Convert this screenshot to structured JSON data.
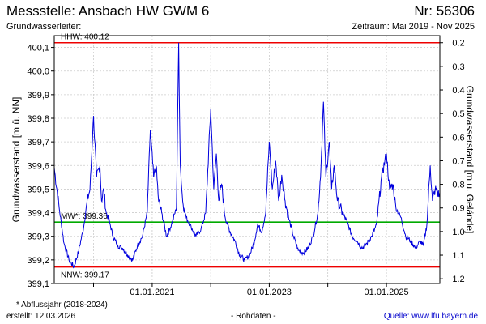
{
  "header": {
    "title": "Messstelle: Ansbach HW GWM 6",
    "number": "Nr: 56306",
    "aquifer_label": "Grundwasserleiter:",
    "period": "Zeitraum: Mai 2019 - Nov 2025"
  },
  "footer": {
    "footnote": "* Abflussjahr (2018-2024)",
    "created": "erstellt:  12.03.2026",
    "raw_data": "- Rohdaten -",
    "source": "Quelle: www.lfu.bayern.de"
  },
  "colors": {
    "series": "#0000dd",
    "hhw": "#ee0000",
    "nnw": "#ee0000",
    "mw": "#00aa00",
    "grid": "#cccccc"
  },
  "chart_data": {
    "type": "line",
    "title": "",
    "ylabel": "Grundwasserstand [m ü. NN]",
    "y2label": "Grundwasserstand [m u. Gelände]",
    "ylim": [
      399.1,
      400.15
    ],
    "yticks": [
      "400,1",
      "400,0",
      "399,9",
      "399,8",
      "399,7",
      "399,6",
      "399,5",
      "399,4",
      "399,3",
      "399,2",
      "399,1"
    ],
    "ytick_values": [
      400.1,
      400.0,
      399.9,
      399.8,
      399.7,
      399.6,
      399.5,
      399.4,
      399.3,
      399.2,
      399.1
    ],
    "y2ticks": [
      "0.2",
      "0.3",
      "0.4",
      "0.5",
      "0.6",
      "0.7",
      "0.8",
      "0.9",
      "1.0",
      "1.1",
      "1.2"
    ],
    "y2tick_values": [
      0.2,
      0.3,
      0.4,
      0.5,
      0.6,
      0.7,
      0.8,
      0.9,
      1.0,
      1.1,
      1.2
    ],
    "xlim": [
      "2019-05-01",
      "2025-11-30"
    ],
    "xticks": [
      "01.01.2021",
      "01.01.2023",
      "01.01.2025"
    ],
    "xtick_values": [
      "2021-01-01",
      "2023-01-01",
      "2025-01-01"
    ],
    "grid": true,
    "reference_lines": [
      {
        "name": "HHW",
        "label": "HHW: 400.12",
        "value": 400.12
      },
      {
        "name": "MW",
        "label": "MW*: 399.36",
        "value": 399.36
      },
      {
        "name": "NNW",
        "label": "NNW: 399.17",
        "value": 399.17
      }
    ],
    "series": [
      {
        "x": [
          "2019-05-01",
          "2019-06-01",
          "2019-07-01",
          "2019-08-01",
          "2019-09-01",
          "2019-10-01",
          "2019-11-01",
          "2019-11-20",
          "2019-12-10",
          "2020-01-01",
          "2020-01-20",
          "2020-02-10",
          "2020-02-20",
          "2020-03-05",
          "2020-03-20",
          "2020-04-10",
          "2020-05-01",
          "2020-06-01",
          "2020-07-01",
          "2020-08-01",
          "2020-09-01",
          "2020-10-01",
          "2020-11-01",
          "2020-12-01",
          "2020-12-20",
          "2021-01-10",
          "2021-01-25",
          "2021-02-10",
          "2021-03-01",
          "2021-04-01",
          "2021-05-01",
          "2021-06-01",
          "2021-06-15",
          "2021-06-25",
          "2021-07-10",
          "2021-08-01",
          "2021-09-01",
          "2021-10-01",
          "2021-11-01",
          "2021-12-01",
          "2022-01-01",
          "2022-01-20",
          "2022-02-05",
          "2022-02-20",
          "2022-03-10",
          "2022-04-01",
          "2022-05-01",
          "2022-06-01",
          "2022-07-01",
          "2022-08-01",
          "2022-09-01",
          "2022-10-01",
          "2022-10-20",
          "2022-11-15",
          "2022-12-10",
          "2023-01-01",
          "2023-01-20",
          "2023-02-10",
          "2023-03-01",
          "2023-03-20",
          "2023-04-10",
          "2023-05-01",
          "2023-06-01",
          "2023-07-01",
          "2023-08-01",
          "2023-09-01",
          "2023-10-01",
          "2023-11-01",
          "2023-11-20",
          "2023-12-05",
          "2023-12-20",
          "2024-01-10",
          "2024-01-25",
          "2024-02-10",
          "2024-03-01",
          "2024-04-01",
          "2024-05-01",
          "2024-06-01",
          "2024-07-01",
          "2024-08-01",
          "2024-09-01",
          "2024-10-01",
          "2024-11-01",
          "2024-12-01",
          "2025-01-01",
          "2025-01-20",
          "2025-02-10",
          "2025-03-01",
          "2025-04-01",
          "2025-05-01",
          "2025-06-01",
          "2025-07-01",
          "2025-08-01",
          "2025-08-20",
          "2025-09-10",
          "2025-10-01",
          "2025-10-15",
          "2025-11-01",
          "2025-11-30"
        ],
        "y": [
          399.59,
          399.42,
          399.27,
          399.2,
          399.17,
          399.24,
          399.34,
          399.44,
          399.5,
          399.81,
          399.55,
          399.6,
          399.45,
          399.5,
          399.4,
          399.36,
          399.3,
          399.26,
          399.25,
          399.22,
          399.2,
          399.26,
          399.3,
          399.4,
          399.75,
          399.55,
          399.6,
          399.45,
          399.4,
          399.3,
          399.35,
          399.42,
          400.12,
          399.6,
          399.45,
          399.38,
          399.34,
          399.3,
          399.33,
          399.4,
          399.84,
          399.5,
          399.65,
          399.45,
          399.52,
          399.38,
          399.32,
          399.28,
          399.22,
          399.2,
          399.22,
          399.28,
          399.35,
          399.32,
          399.4,
          399.7,
          399.5,
          399.62,
          399.45,
          399.56,
          399.45,
          399.38,
          399.3,
          399.24,
          399.23,
          399.25,
          399.3,
          399.4,
          399.6,
          399.87,
          399.55,
          399.7,
          399.5,
          399.6,
          399.45,
          399.4,
          399.36,
          399.3,
          399.28,
          399.25,
          399.27,
          399.3,
          399.35,
          399.55,
          399.65,
          399.5,
          399.52,
          399.42,
          399.38,
          399.3,
          399.28,
          399.25,
          399.28,
          399.26,
          399.35,
          399.6,
          399.45,
          399.5,
          399.47
        ]
      }
    ]
  }
}
